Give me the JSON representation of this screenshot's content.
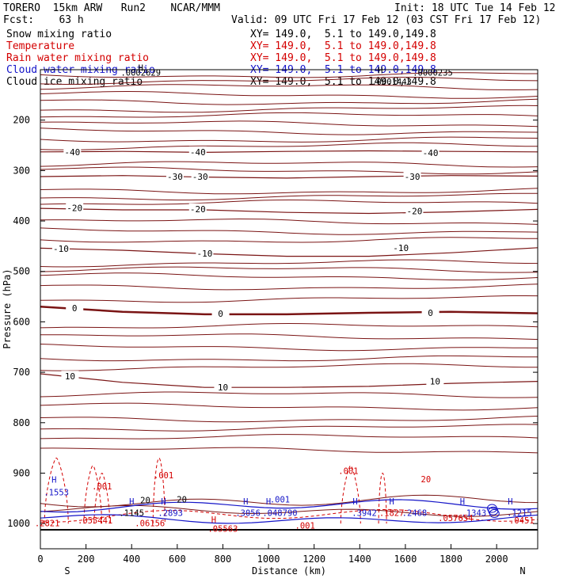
{
  "header": {
    "model": "TORERO  15km ARW   Run2    NCAR/MMM",
    "init": "Init: 18 UTC Tue 14 Feb 12",
    "fcst": "Fcst:    63 h",
    "valid": "Valid: 09 UTC Fri 17 Feb 12 (03 CST Fri 17 Feb 12)"
  },
  "legend": [
    {
      "name": "Snow mixing ratio",
      "xy": "XY= 149.0,  5.1 to 149.0,149.8",
      "color": "#000000"
    },
    {
      "name": "Temperature",
      "xy": "XY= 149.0,  5.1 to 149.0,149.8",
      "color": "#d40000"
    },
    {
      "name": "Rain water mixing ratio",
      "xy": "XY= 149.0,  5.1 to 149.0,149.8",
      "color": "#d40000"
    },
    {
      "name": "Cloud water mixing ratio",
      "xy": "XY= 149.0,  5.1 to 149.0,149.8",
      "color": "#1414c8"
    },
    {
      "name": "Cloud ice mixing ratio",
      "xy": "XY= 149.0,  5.1 to 149.0,149.8",
      "color": "#000000"
    }
  ],
  "chart_data": {
    "type": "cross-section contour",
    "xlabel": "Distance (km)",
    "ylabel": "Pressure (hPa)",
    "xlim": [
      0,
      2180
    ],
    "ylim": [
      1050,
      100
    ],
    "x_ticks": [
      "0",
      "200",
      "400",
      "600",
      "800",
      "1000",
      "1200",
      "1400",
      "1600",
      "1800",
      "2000"
    ],
    "y_ticks": [
      "200",
      "300",
      "400",
      "500",
      "600",
      "700",
      "800",
      "900",
      "1000"
    ],
    "direction_labels": {
      "left": "S",
      "right": "N"
    },
    "temperature_contours": [
      {
        "label": "-40",
        "p": [
          263,
          262,
          264,
          262,
          261,
          262,
          263
        ]
      },
      {
        "label": "-30",
        "p": [
          312,
          310,
          313,
          315,
          312,
          310,
          311
        ]
      },
      {
        "label": "-20",
        "p": [
          375,
          378,
          378,
          383,
          385,
          382,
          377
        ]
      },
      {
        "label": "-10",
        "p": [
          454,
          458,
          465,
          470,
          470,
          463,
          453
        ]
      },
      {
        "label": "0",
        "p": [
          570,
          580,
          585,
          585,
          582,
          580,
          583
        ]
      },
      {
        "label": "10",
        "p": [
          703,
          720,
          730,
          730,
          728,
          722,
          718
        ]
      }
    ],
    "contour_labels": [
      {
        "text": "-40",
        "x": 140,
        "p": 263
      },
      {
        "text": "-40",
        "x": 690,
        "p": 263
      },
      {
        "text": "-40",
        "x": 1710,
        "p": 265
      },
      {
        "text": "-30",
        "x": 590,
        "p": 312
      },
      {
        "text": "-30",
        "x": 700,
        "p": 312
      },
      {
        "text": "-30",
        "x": 1630,
        "p": 312
      },
      {
        "text": "-20",
        "x": 150,
        "p": 374
      },
      {
        "text": "-20",
        "x": 690,
        "p": 376
      },
      {
        "text": "-20",
        "x": 1640,
        "p": 380
      },
      {
        "text": "-10",
        "x": 90,
        "p": 455
      },
      {
        "text": "-10",
        "x": 720,
        "p": 464
      },
      {
        "text": "-10",
        "x": 1580,
        "p": 453
      },
      {
        "text": "0",
        "x": 150,
        "p": 573
      },
      {
        "text": "0",
        "x": 790,
        "p": 584
      },
      {
        "text": "0",
        "x": 1710,
        "p": 582
      },
      {
        "text": "10",
        "x": 130,
        "p": 708
      },
      {
        "text": "10",
        "x": 800,
        "p": 730
      },
      {
        "text": "10",
        "x": 1730,
        "p": 718
      }
    ],
    "annotations": [
      {
        "text": "H",
        "x": 440,
        "p": 102,
        "color": "#000000"
      },
      {
        "text": ".0002629",
        "x": 440,
        "p": 112,
        "color": "#000000"
      },
      {
        "text": ".0001443",
        "x": 1540,
        "p": 130,
        "color": "#000000"
      },
      {
        "text": "H",
        "x": 1490,
        "p": 107,
        "color": "#000000"
      },
      {
        "text": ".0000235",
        "x": 1720,
        "p": 112,
        "color": "#000000"
      },
      {
        "text": ".001",
        "x": 540,
        "p": 910,
        "color": "#d40000"
      },
      {
        "text": ".001",
        "x": 1350,
        "p": 902,
        "color": "#d40000"
      },
      {
        "text": ".001",
        "x": 270,
        "p": 932,
        "color": "#d40000"
      },
      {
        "text": "20",
        "x": 1690,
        "p": 918,
        "color": "#d40000"
      },
      {
        "text": "20",
        "x": 460,
        "p": 960,
        "color": "#000000"
      },
      {
        "text": "20",
        "x": 620,
        "p": 958,
        "color": "#000000"
      },
      {
        "text": "H",
        "x": 60,
        "p": 919,
        "color": "#1414c8"
      },
      {
        "text": ".1553",
        "x": 70,
        "p": 944,
        "color": "#1414c8"
      },
      {
        "text": "H",
        "x": 400,
        "p": 962,
        "color": "#1414c8"
      },
      {
        "text": ".1145",
        "x": 400,
        "p": 985,
        "color": "#000000"
      },
      {
        "text": "H",
        "x": 540,
        "p": 962,
        "color": "#1414c8"
      },
      {
        "text": ".2893",
        "x": 570,
        "p": 985,
        "color": "#1414c8"
      },
      {
        "text": "H",
        "x": 900,
        "p": 962,
        "color": "#1414c8"
      },
      {
        "text": ".3056",
        "x": 910,
        "p": 985,
        "color": "#1414c8"
      },
      {
        "text": "H",
        "x": 1000,
        "p": 962,
        "color": "#1414c8"
      },
      {
        "text": ".001",
        "x": 1050,
        "p": 958,
        "color": "#1414c8"
      },
      {
        "text": ".048790",
        "x": 1050,
        "p": 985,
        "color": "#1414c8"
      },
      {
        "text": "H",
        "x": 1380,
        "p": 962,
        "color": "#1414c8"
      },
      {
        "text": ".3942",
        "x": 1420,
        "p": 985,
        "color": "#1414c8"
      },
      {
        "text": "H",
        "x": 1540,
        "p": 962,
        "color": "#1414c8"
      },
      {
        "text": ".1827",
        "x": 1540,
        "p": 985,
        "color": "#d40000"
      },
      {
        "text": ".2468",
        "x": 1640,
        "p": 985,
        "color": "#1414c8"
      },
      {
        "text": "H",
        "x": 1850,
        "p": 962,
        "color": "#1414c8"
      },
      {
        "text": ".1343",
        "x": 1900,
        "p": 985,
        "color": "#1414c8"
      },
      {
        "text": "H",
        "x": 2060,
        "p": 962,
        "color": "#1414c8"
      },
      {
        "text": ".1215",
        "x": 2100,
        "p": 985,
        "color": "#1414c8"
      },
      {
        "text": ".055441",
        "x": 240,
        "p": 1000,
        "color": "#d40000"
      },
      {
        "text": ".057654",
        "x": 1820,
        "p": 995,
        "color": "#d40000"
      },
      {
        "text": ".0451",
        "x": 2110,
        "p": 1000,
        "color": "#d40000"
      },
      {
        "text": ".06156",
        "x": 480,
        "p": 1005,
        "color": "#d40000"
      },
      {
        "text": "H",
        "x": 760,
        "p": 998,
        "color": "#d40000"
      },
      {
        "text": ".05563",
        "x": 800,
        "p": 1016,
        "color": "#d40000"
      },
      {
        "text": ".2821",
        "x": 30,
        "p": 1005,
        "color": "#d40000"
      },
      {
        "text": ".001",
        "x": 1160,
        "p": 1010,
        "color": "#d40000"
      }
    ]
  }
}
